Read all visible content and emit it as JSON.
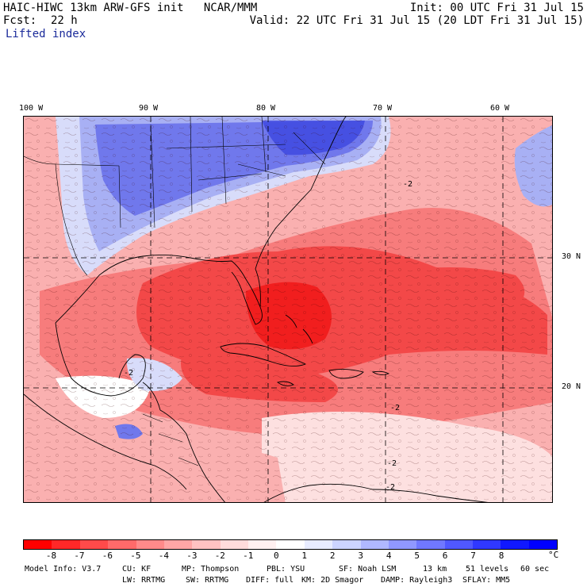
{
  "header": {
    "model_line": "HAIC-HIWC 13km ARW-GFS init   NCAR/MMM",
    "fcst_label": "Fcst:",
    "fcst_value": "22 h",
    "field": "Lifted index",
    "init": "Init: 00 UTC Fri 31 Jul 15",
    "valid": "Valid: 22 UTC Fri 31 Jul 15 (20 LDT Fri 31 Jul 15)"
  },
  "map": {
    "lon_labels": [
      "100 W",
      "90 W",
      "80 W",
      "70 W",
      "60 W"
    ],
    "lat_labels": [
      "30 N",
      "20 N"
    ],
    "contour_labels": [
      "-2",
      "-2",
      "-2",
      "-2",
      "-2"
    ],
    "colors": {
      "deep_red": "#f01010",
      "red": "#f34848",
      "light_red": "#f77c7c",
      "pink": "#fab0b0",
      "pale_pink": "#fde0e0",
      "white": "#ffffff",
      "pale_blue": "#d8dcfa",
      "light_blue": "#a8b0f4",
      "blue": "#7078ec",
      "deep_blue": "#3c46e0",
      "boundary": "#000000"
    }
  },
  "colorbar": {
    "colors": [
      "#ff0000",
      "#ff2828",
      "#ff4a4a",
      "#ff6a6a",
      "#ff8a8a",
      "#ffa6a6",
      "#ffc2c2",
      "#ffdcdc",
      "#fff0f0",
      "#ffffff",
      "#e8ecff",
      "#ccd4ff",
      "#b0b8ff",
      "#9098ff",
      "#7078ff",
      "#5058ff",
      "#3038ff",
      "#1018ff",
      "#0000ff"
    ],
    "ticks": [
      "-8",
      "-7",
      "-6",
      "-5",
      "-4",
      "-3",
      "-2",
      "-1",
      "0",
      "1",
      "2",
      "3",
      "4",
      "5",
      "6",
      "7",
      "8"
    ],
    "unit": "°C"
  },
  "footer": {
    "line1": [
      "Model Info: V3.7",
      "CU: KF",
      "MP: Thompson",
      "PBL: YSU",
      "SF: Noah LSM",
      "13 km",
      "51 levels",
      "60 sec"
    ],
    "line2": [
      "LW: RRTMG",
      "SW: RRTMG",
      "DIFF: full",
      "KM: 2D Smagor",
      "DAMP: Rayleigh3",
      "SFLAY: MM5"
    ]
  }
}
